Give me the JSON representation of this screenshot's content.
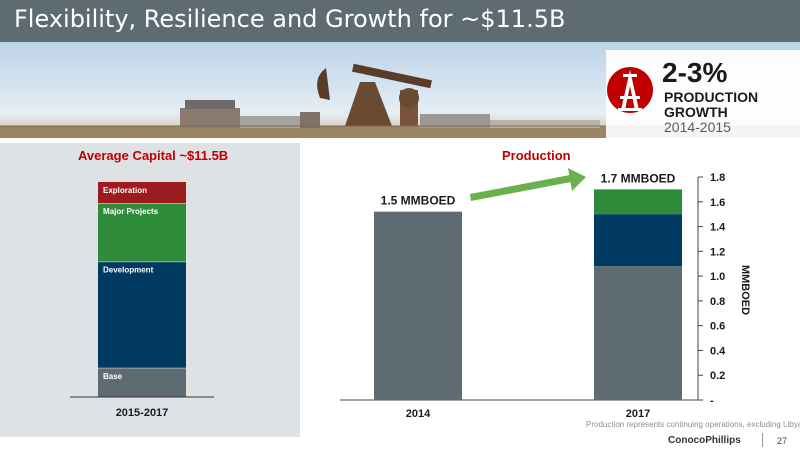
{
  "slide": {
    "title": "Flexibility, Resilience and Growth for ~$11.5B",
    "page_number": "27",
    "footnote": "Production represents continuing operations, excluding Libya.",
    "logo_text": "ConocoPhillips"
  },
  "callout": {
    "value": "2-3%",
    "line1": "PRODUCTION",
    "line2": "GROWTH",
    "line3": "2014-2015",
    "icon": "oil-rig-icon"
  },
  "colors": {
    "header": "#5f6b73",
    "accent_red": "#c00000",
    "base_gray": "#5f6b73",
    "development_blue": "#003a63",
    "major_projects_green": "#2e8b3a",
    "exploration_red": "#9b1b1f",
    "arrow_green": "#6ab04c"
  },
  "chart_data": [
    {
      "type": "bar",
      "title": "Average Capital ~$11.5B",
      "stacked": true,
      "categories": [
        "2015-2017"
      ],
      "series": [
        {
          "name": "Base",
          "values": [
            11
          ]
        },
        {
          "name": "Development",
          "values": [
            40
          ]
        },
        {
          "name": "Major Projects",
          "values": [
            22
          ]
        },
        {
          "name": "Exploration",
          "values": [
            8
          ]
        }
      ],
      "value_unit": "percent of total capital (estimated)"
    },
    {
      "type": "bar",
      "title": "Production",
      "stacked": true,
      "categories": [
        "2014",
        "2017"
      ],
      "series": [
        {
          "values": [
            1.52,
            1.08
          ]
        },
        {
          "values": [
            0,
            0.42
          ]
        },
        {
          "values": [
            0,
            0.2
          ]
        }
      ],
      "bar_labels": [
        "1.5 MMBOED",
        "1.7 MMBOED"
      ],
      "ylabel": "MMBOED",
      "ylim": [
        0,
        1.8
      ],
      "yticks": [
        0,
        0.2,
        0.4,
        0.6,
        0.8,
        1.0,
        1.2,
        1.4,
        1.6,
        1.8
      ],
      "ytick_labels": [
        "-",
        "0.2",
        "0.4",
        "0.6",
        "0.8",
        "1.0",
        "1.2",
        "1.4",
        "1.6",
        "1.8"
      ],
      "annotation": "growth arrow from 2014 to 2017"
    }
  ]
}
